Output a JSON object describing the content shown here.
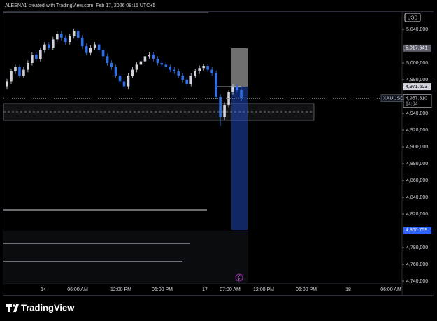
{
  "header": "ALEENA1 created with TradingView.com, Feb 17, 2026 08:15 UTC+5",
  "footer": "TradingView",
  "chart_data": {
    "type": "candlestick",
    "symbol": "XAUUSD",
    "currency": "USD",
    "up_color": "#d1d4dc",
    "down_color": "#2f6fe8",
    "open": [
      4972,
      4978,
      4990,
      4995,
      4985,
      4992,
      5000,
      5010,
      5005,
      5015,
      5022,
      5018,
      5028,
      5035,
      5030,
      5025,
      5032,
      5038,
      5030,
      5020,
      5012,
      5018,
      5022,
      5015,
      5008,
      5000,
      4995,
      4985,
      4978,
      4972,
      4985,
      4992,
      4998,
      5002,
      5008,
      5010,
      5005,
      5000,
      4998,
      4995,
      4992,
      4990,
      4985,
      4980,
      4975,
      4985,
      4990,
      4994,
      4996,
      4992,
      4988,
      4960,
      4935,
      4950,
      4965,
      4972,
      4968
    ],
    "high": [
      4981,
      4993,
      4998,
      4998,
      4995,
      5003,
      5013,
      5013,
      5018,
      5025,
      5025,
      5031,
      5038,
      5038,
      5033,
      5035,
      5041,
      5041,
      5033,
      5023,
      5021,
      5025,
      5025,
      5018,
      5011,
      5003,
      4998,
      4988,
      4981,
      4988,
      4995,
      5001,
      5005,
      5011,
      5013,
      5013,
      5008,
      5003,
      5001,
      4998,
      4995,
      4993,
      4988,
      4983,
      4988,
      4993,
      4997,
      4999,
      4999,
      4995,
      4991,
      4963,
      4953,
      4968,
      4975,
      4975,
      4971
    ],
    "low": [
      4969,
      4975,
      4987,
      4982,
      4982,
      4989,
      4997,
      5002,
      5002,
      5012,
      5015,
      5015,
      5025,
      5027,
      5022,
      5022,
      5029,
      5027,
      5017,
      5009,
      5009,
      5015,
      5012,
      5005,
      4997,
      4992,
      4982,
      4975,
      4969,
      4969,
      4982,
      4989,
      4995,
      4999,
      5005,
      5002,
      4997,
      4995,
      4992,
      4989,
      4987,
      4982,
      4977,
      4972,
      4972,
      4982,
      4987,
      4991,
      4989,
      4985,
      4957,
      4925,
      4932,
      4947,
      4962,
      4965,
      4955
    ],
    "close": [
      4978,
      4990,
      4995,
      4985,
      4992,
      5000,
      5010,
      5005,
      5015,
      5022,
      5018,
      5028,
      5035,
      5030,
      5025,
      5032,
      5038,
      5030,
      5020,
      5012,
      5018,
      5022,
      5015,
      5008,
      5000,
      4995,
      4985,
      4978,
      4972,
      4985,
      4992,
      4998,
      5002,
      5008,
      5010,
      5005,
      5000,
      4998,
      4995,
      4992,
      4990,
      4985,
      4980,
      4975,
      4985,
      4990,
      4994,
      4996,
      4992,
      4988,
      4960,
      4935,
      4950,
      4965,
      4972,
      4968,
      4958
    ],
    "ylim": [
      4737.5,
      5060
    ],
    "yticks": [
      {
        "value": 5040,
        "label": "5,040,000"
      },
      {
        "value": 5000,
        "label": "5,000,000"
      },
      {
        "value": 4980,
        "label": "4,980,000"
      },
      {
        "value": 4940,
        "label": "4,940,000"
      },
      {
        "value": 4920,
        "label": "4,920,000"
      },
      {
        "value": 4900,
        "label": "4,900,000"
      },
      {
        "value": 4880,
        "label": "4,880,000"
      },
      {
        "value": 4860,
        "label": "4,860,000"
      },
      {
        "value": 4840,
        "label": "4,840,000"
      },
      {
        "value": 4820,
        "label": "4,820,000"
      },
      {
        "value": 4780,
        "label": "4,780,000"
      },
      {
        "value": 4760,
        "label": "4,760,000"
      },
      {
        "value": 4740,
        "label": "4,740,000"
      }
    ],
    "xtick_labels": [
      "14",
      "06:00 AM",
      "12:00 PM",
      "06:00 PM",
      "17",
      "07:00 AM",
      "12:00 PM",
      "06:00 PM",
      "18",
      "06:00 AM"
    ],
    "target": {
      "value": 5017.641,
      "label": "5,017.641"
    },
    "entry": {
      "value": 4971.603,
      "label": "4,971.603"
    },
    "last_price": {
      "value": 4957.81,
      "label": "4,957.810"
    },
    "countdown": "14:04",
    "stop": {
      "value": 4800.759,
      "label": "4,800.759"
    }
  }
}
